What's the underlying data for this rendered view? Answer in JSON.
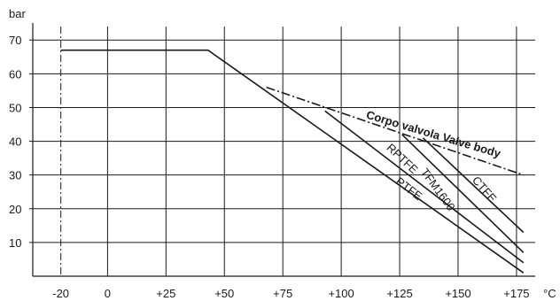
{
  "chart_data": {
    "type": "line",
    "title": "",
    "ylabel": "bar",
    "xlabel": "°C",
    "xlim": [
      -20,
      180
    ],
    "ylim": [
      0,
      75
    ],
    "grid": true,
    "x_ticks": [
      {
        "value": -20,
        "label": "-20"
      },
      {
        "value": 0,
        "label": "0"
      },
      {
        "value": 25,
        "label": "+25"
      },
      {
        "value": 50,
        "label": "+50"
      },
      {
        "value": 75,
        "label": "+75"
      },
      {
        "value": 100,
        "label": "+100"
      },
      {
        "value": 125,
        "label": "+125"
      },
      {
        "value": 150,
        "label": "+150"
      },
      {
        "value": 175,
        "label": "+175"
      }
    ],
    "y_ticks": [
      {
        "value": 10,
        "label": "10"
      },
      {
        "value": 20,
        "label": "20"
      },
      {
        "value": 30,
        "label": "30"
      },
      {
        "value": 40,
        "label": "40"
      },
      {
        "value": 50,
        "label": "50"
      },
      {
        "value": 60,
        "label": "60"
      },
      {
        "value": 70,
        "label": "70"
      }
    ],
    "series": [
      {
        "name": "PTFE",
        "style": "solid",
        "color": "#1a1a1a",
        "points": [
          [
            -20,
            67
          ],
          [
            43,
            67
          ],
          [
            178,
            1
          ]
        ]
      },
      {
        "name": "RPTFE",
        "style": "solid",
        "color": "#1a1a1a",
        "points": [
          [
            93,
            49
          ],
          [
            178,
            4
          ]
        ]
      },
      {
        "name": "TFM1600",
        "style": "solid",
        "color": "#1a1a1a",
        "points": [
          [
            126,
            42
          ],
          [
            178,
            7
          ]
        ]
      },
      {
        "name": "CTFE",
        "style": "solid",
        "color": "#1a1a1a",
        "points": [
          [
            135,
            41
          ],
          [
            178,
            13
          ]
        ]
      },
      {
        "name": "Corpo valvola Valve body",
        "style": "dashdot",
        "color": "#1a1a1a",
        "points": [
          [
            68,
            56
          ],
          [
            178,
            30
          ]
        ]
      }
    ],
    "vertical_reference": {
      "x": -20,
      "style": "dashdot"
    },
    "labels": [
      {
        "text": "Corpo valvola Valve body",
        "series": "Corpo valvola Valve body",
        "bold": true
      },
      {
        "text": "RPTFE",
        "series": "RPTFE",
        "bold": false
      },
      {
        "text": "TFM1600",
        "series": "TFM1600",
        "bold": false
      },
      {
        "text": "CTFE",
        "series": "CTFE",
        "bold": false
      },
      {
        "text": "PTFE",
        "series": "PTFE",
        "bold": false
      }
    ]
  }
}
